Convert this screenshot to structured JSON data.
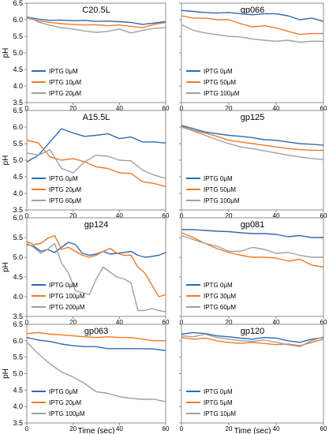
{
  "colors": {
    "blue": "#2e6ab5",
    "orange": "#ef7a26",
    "gray": "#a0a0a0",
    "frame": "#8c8c8c"
  },
  "axes": {
    "ylabel": "pH",
    "xlabel": "Time (sec)",
    "x_ticks": [
      "0",
      "20",
      "40",
      "60"
    ]
  },
  "chart_data": [
    {
      "type": "line",
      "title": "C20.5L",
      "xlim": [
        0,
        60
      ],
      "ylim": [
        3.5,
        6.5
      ],
      "y_ticks": [
        "3.5",
        "4.0",
        "4.5",
        "5.0",
        "5.5",
        "6.0",
        "6.5"
      ],
      "x": [
        0,
        5,
        10,
        15,
        20,
        25,
        30,
        35,
        40,
        45,
        50,
        55,
        60
      ],
      "series": [
        {
          "name": "IPTG 0μM",
          "color": "blue",
          "values": [
            6.08,
            6.02,
            5.98,
            5.99,
            5.97,
            5.98,
            5.95,
            5.96,
            5.94,
            5.92,
            5.86,
            5.9,
            5.94
          ]
        },
        {
          "name": "IPTG 10μM",
          "color": "orange",
          "values": [
            6.05,
            5.97,
            5.92,
            5.88,
            5.86,
            5.84,
            5.85,
            5.82,
            5.84,
            5.8,
            5.76,
            5.86,
            5.92
          ]
        },
        {
          "name": "IPTG 20μM",
          "color": "gray",
          "values": [
            6.1,
            5.93,
            5.83,
            5.76,
            5.72,
            5.66,
            5.62,
            5.65,
            5.72,
            5.6,
            5.68,
            5.74,
            5.76
          ]
        }
      ]
    },
    {
      "type": "line",
      "title": "gp066",
      "xlim": [
        0,
        60
      ],
      "ylim": [
        3.5,
        6.5
      ],
      "y_ticks": [
        "3.5",
        "4.0",
        "4.5",
        "5.0",
        "5.5",
        "6.0",
        "6.5"
      ],
      "x": [
        0,
        5,
        10,
        15,
        20,
        25,
        30,
        35,
        40,
        45,
        50,
        55,
        60
      ],
      "series": [
        {
          "name": "IPTG 0μM",
          "color": "blue",
          "values": [
            6.28,
            6.25,
            6.22,
            6.2,
            6.22,
            6.18,
            6.15,
            6.18,
            6.18,
            6.12,
            6.0,
            6.05,
            5.95
          ]
        },
        {
          "name": "IPTG 50μM",
          "color": "orange",
          "values": [
            6.12,
            6.05,
            6.05,
            6.0,
            6.0,
            5.88,
            5.78,
            5.82,
            5.75,
            5.65,
            5.56,
            5.58,
            5.58
          ]
        },
        {
          "name": "IPTG 100μM",
          "color": "gray",
          "values": [
            5.85,
            5.68,
            5.6,
            5.55,
            5.5,
            5.48,
            5.42,
            5.38,
            5.35,
            5.38,
            5.32,
            5.35,
            5.35
          ]
        }
      ]
    },
    {
      "type": "line",
      "title": "A15.5L",
      "xlim": [
        0,
        60
      ],
      "ylim": [
        3.5,
        6.5
      ],
      "y_ticks": [
        "3.5",
        "4.0",
        "4.5",
        "5.0",
        "5.5",
        "6.0",
        "6.5"
      ],
      "x": [
        0,
        5,
        10,
        15,
        20,
        25,
        30,
        35,
        40,
        45,
        50,
        55,
        60
      ],
      "series": [
        {
          "name": "IPTG 0μM",
          "color": "blue",
          "values": [
            4.95,
            5.15,
            5.55,
            5.95,
            5.82,
            5.72,
            5.75,
            5.8,
            5.65,
            5.7,
            5.55,
            5.55,
            5.52
          ]
        },
        {
          "name": "IPTG 20μM",
          "color": "orange",
          "values": [
            5.6,
            5.52,
            5.1,
            5.0,
            5.05,
            4.95,
            4.8,
            4.75,
            4.62,
            4.6,
            4.35,
            4.3,
            4.2
          ]
        },
        {
          "name": "IPTG 60μM",
          "color": "gray",
          "values": [
            5.22,
            5.15,
            5.32,
            4.75,
            4.62,
            4.95,
            5.15,
            5.12,
            5.0,
            4.98,
            4.7,
            4.55,
            4.45
          ]
        }
      ]
    },
    {
      "type": "line",
      "title": "gp125",
      "xlim": [
        0,
        60
      ],
      "ylim": [
        3.5,
        6.5
      ],
      "y_ticks": [
        "3.5",
        "4.0",
        "4.5",
        "5.0",
        "5.5",
        "6.0",
        "6.5"
      ],
      "x": [
        0,
        5,
        10,
        15,
        20,
        25,
        30,
        35,
        40,
        45,
        50,
        55,
        60
      ],
      "series": [
        {
          "name": "IPTG 0μM",
          "color": "blue",
          "values": [
            6.05,
            5.95,
            5.85,
            5.8,
            5.75,
            5.72,
            5.68,
            5.62,
            5.6,
            5.55,
            5.5,
            5.48,
            5.45
          ]
        },
        {
          "name": "IPTG 50μM",
          "color": "orange",
          "values": [
            6.02,
            5.9,
            5.82,
            5.72,
            5.6,
            5.55,
            5.5,
            5.45,
            5.4,
            5.35,
            5.32,
            5.3,
            5.3
          ]
        },
        {
          "name": "IPTG 100μM",
          "color": "gray",
          "values": [
            6.0,
            5.88,
            5.75,
            5.62,
            5.5,
            5.4,
            5.35,
            5.28,
            5.22,
            5.15,
            5.1,
            5.05,
            5.02
          ]
        }
      ]
    },
    {
      "type": "line",
      "title": "gp124",
      "xlim": [
        0,
        60
      ],
      "ylim": [
        3.5,
        6.0
      ],
      "y_ticks": [
        "3.5",
        "4.0",
        "4.5",
        "5.0",
        "5.5",
        "6.0"
      ],
      "x": [
        0,
        3,
        6,
        9,
        12,
        15,
        18,
        21,
        24,
        27,
        30,
        33,
        36,
        39,
        42,
        45,
        48,
        51,
        54,
        57,
        60
      ],
      "series": [
        {
          "name": "IPTG 0μM",
          "color": "blue",
          "values": [
            5.32,
            5.28,
            5.15,
            5.2,
            5.12,
            5.25,
            5.38,
            5.32,
            5.1,
            5.05,
            5.08,
            5.15,
            5.08,
            5.1,
            5.12,
            5.15,
            5.05,
            5.0,
            5.02,
            5.05,
            5.12
          ]
        },
        {
          "name": "IPTG 100μM",
          "color": "orange",
          "values": [
            5.4,
            5.32,
            5.35,
            5.48,
            5.55,
            5.2,
            5.25,
            5.15,
            5.05,
            5.0,
            5.05,
            5.15,
            5.22,
            5.1,
            5.05,
            5.05,
            4.75,
            4.6,
            4.3,
            4.0,
            4.05
          ]
        },
        {
          "name": "IPTG 200μM",
          "color": "gray",
          "values": [
            5.35,
            5.25,
            5.1,
            5.2,
            5.35,
            4.85,
            4.6,
            4.15,
            4.1,
            4.05,
            4.45,
            4.75,
            4.62,
            4.5,
            4.45,
            4.35,
            3.65,
            3.65,
            3.7,
            3.65,
            3.62
          ]
        }
      ]
    },
    {
      "type": "line",
      "title": "gp081",
      "xlim": [
        0,
        60
      ],
      "ylim": [
        3.5,
        6.0
      ],
      "y_ticks": [
        "3.5",
        "4.0",
        "4.5",
        "5.0",
        "5.5",
        "6.0"
      ],
      "x": [
        0,
        5,
        10,
        15,
        20,
        25,
        30,
        35,
        40,
        45,
        50,
        55,
        60
      ],
      "series": [
        {
          "name": "IPTG 0μM",
          "color": "blue",
          "values": [
            5.7,
            5.7,
            5.68,
            5.66,
            5.65,
            5.62,
            5.6,
            5.6,
            5.58,
            5.52,
            5.55,
            5.5,
            5.5
          ]
        },
        {
          "name": "IPTG 30μM",
          "color": "orange",
          "values": [
            5.62,
            5.5,
            5.35,
            5.22,
            5.12,
            5.05,
            5.0,
            5.0,
            4.98,
            4.9,
            4.95,
            4.8,
            4.75
          ]
        },
        {
          "name": "IPTG 60μM",
          "color": "gray",
          "values": [
            5.55,
            5.45,
            5.35,
            5.28,
            5.15,
            5.15,
            5.25,
            5.2,
            5.1,
            5.12,
            5.05,
            5.0,
            5.0
          ]
        }
      ]
    },
    {
      "type": "line",
      "title": "gp063",
      "xlim": [
        0,
        60
      ],
      "ylim": [
        3.5,
        6.5
      ],
      "y_ticks": [
        "3.5",
        "4.0",
        "4.5",
        "5.0",
        "5.5",
        "6.0",
        "6.5"
      ],
      "x": [
        0,
        5,
        10,
        15,
        20,
        25,
        30,
        35,
        40,
        45,
        50,
        55,
        60
      ],
      "series": [
        {
          "name": "IPTG 0μM",
          "color": "blue",
          "values": [
            6.1,
            6.02,
            5.98,
            5.9,
            5.85,
            5.82,
            5.82,
            5.76,
            5.76,
            5.76,
            5.76,
            5.75,
            5.7
          ]
        },
        {
          "name": "IPTG 20μM",
          "color": "orange",
          "values": [
            6.22,
            6.25,
            6.2,
            6.18,
            6.15,
            6.12,
            6.1,
            6.12,
            6.1,
            6.1,
            6.05,
            6.0,
            6.0
          ]
        },
        {
          "name": "IPTG 100μM",
          "color": "gray",
          "values": [
            5.95,
            5.6,
            5.3,
            5.05,
            4.9,
            4.7,
            4.45,
            4.4,
            4.3,
            4.25,
            4.22,
            4.22,
            4.15
          ]
        }
      ]
    },
    {
      "type": "line",
      "title": "gp120",
      "xlim": [
        0,
        60
      ],
      "ylim": [
        3.5,
        6.5
      ],
      "y_ticks": [
        "3.5",
        "4.0",
        "4.5",
        "5.0",
        "5.5",
        "6.0",
        "6.5"
      ],
      "x": [
        0,
        5,
        10,
        15,
        20,
        25,
        30,
        35,
        40,
        45,
        50,
        55,
        60
      ],
      "series": [
        {
          "name": "IPTG 0μM",
          "color": "blue",
          "values": [
            6.2,
            6.25,
            6.22,
            6.15,
            6.12,
            6.08,
            6.05,
            6.1,
            6.08,
            6.0,
            5.95,
            6.05,
            6.1
          ]
        },
        {
          "name": "IPTG 5μM",
          "color": "orange",
          "values": [
            6.1,
            6.05,
            6.08,
            6.0,
            5.95,
            5.92,
            5.95,
            5.92,
            5.88,
            5.9,
            5.85,
            5.95,
            6.05
          ]
        },
        {
          "name": "IPTG 10μM",
          "color": "gray",
          "values": [
            6.15,
            6.12,
            6.2,
            6.1,
            6.05,
            6.0,
            5.98,
            6.02,
            5.95,
            5.88,
            5.82,
            6.0,
            6.12
          ]
        }
      ]
    }
  ]
}
